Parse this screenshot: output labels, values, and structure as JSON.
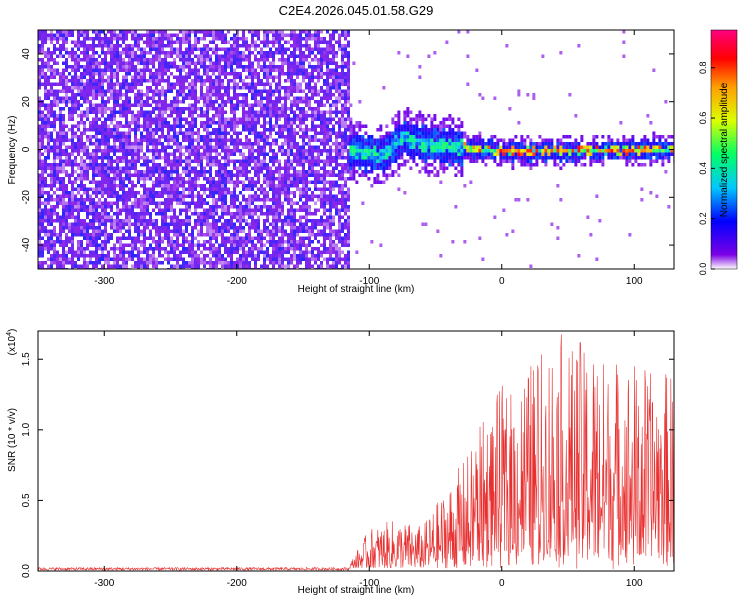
{
  "title": "C2E4.2026.045.01.58.G29",
  "chart_data": [
    {
      "type": "heatmap",
      "title": "C2E4.2026.045.01.58.G29",
      "xlabel": "Height of straight line (km)",
      "ylabel": "Frequency (Hz)",
      "xlim": [
        -350,
        130
      ],
      "ylim": [
        -50,
        50
      ],
      "xticks": [
        -300,
        -200,
        -100,
        0,
        100
      ],
      "xtick_labels": [
        "-300",
        "-200",
        "-100",
        "0",
        "100"
      ],
      "yticks": [
        -40,
        -20,
        0,
        20,
        40
      ],
      "ytick_labels": [
        "-40",
        "-20",
        "0",
        "20",
        "40"
      ],
      "noise_region_end_km": -115,
      "signal_track_center_hz": [
        [
          -115,
          0
        ],
        [
          -90,
          -2
        ],
        [
          -75,
          6
        ],
        [
          -60,
          3
        ],
        [
          -40,
          2
        ],
        [
          -20,
          1
        ],
        [
          0,
          0
        ],
        [
          50,
          0
        ],
        [
          130,
          1
        ]
      ],
      "colorbar": {
        "label": "Normalized spectral amplitude",
        "range": [
          0,
          0.95
        ],
        "ticks": [
          0.0,
          0.2,
          0.4,
          0.6,
          0.8
        ],
        "tick_labels": [
          "0.0",
          "0.2",
          "0.4",
          "0.6",
          "0.8"
        ],
        "colors": [
          "#ffffff",
          "#7a00e6",
          "#0000ff",
          "#00c8ff",
          "#00ff64",
          "#dcff00",
          "#ffa000",
          "#ff0000",
          "#ff0080"
        ]
      }
    },
    {
      "type": "line",
      "xlabel": "Height of straight line (km)",
      "ylabel": "SNR (10 * v/v)",
      "y_multiplier": "(x10",
      "y_multiplier_exp": "4",
      "y_multiplier_close": ")",
      "xlim": [
        -350,
        130
      ],
      "ylim": [
        0,
        1.7
      ],
      "xticks": [
        -300,
        -200,
        -100,
        0,
        100
      ],
      "xtick_labels": [
        "-300",
        "-200",
        "-100",
        "0",
        "100"
      ],
      "yticks": [
        0.0,
        0.5,
        1.0,
        1.5
      ],
      "ytick_labels": [
        "0.0",
        "0.5",
        "1.0",
        "1.5"
      ],
      "color": "#e83030",
      "envelope_km": [
        -350,
        -115,
        -100,
        -80,
        -60,
        -40,
        -20,
        0,
        20,
        40,
        60,
        80,
        100,
        130
      ],
      "envelope_max": [
        0.03,
        0.03,
        0.28,
        0.35,
        0.3,
        0.6,
        0.9,
        1.2,
        1.4,
        1.6,
        1.55,
        1.45,
        1.4,
        1.3
      ]
    }
  ]
}
